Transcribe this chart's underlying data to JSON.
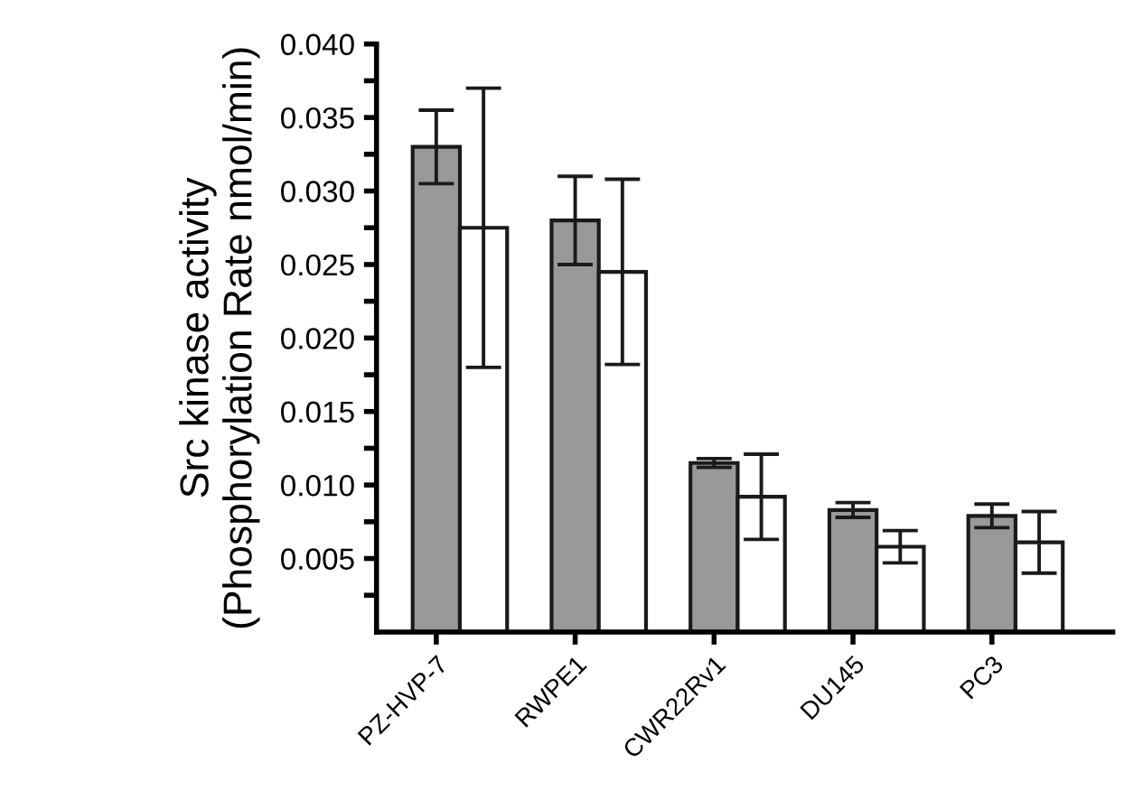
{
  "chart_data": {
    "type": "bar",
    "ylabel": "Src kinase activity\n(Phosphorylation Rate nmol/min)",
    "categories": [
      "PZ-HVP-7",
      "RWPE1",
      "CWR22Rv1",
      "DU145",
      "PC3"
    ],
    "series": [
      {
        "color": "#999999",
        "values": [
          0.033,
          0.028,
          0.0115,
          0.0083,
          0.0079
        ],
        "errors": [
          0.0025,
          0.003,
          0.0003,
          0.0005,
          0.0008
        ]
      },
      {
        "color": "#ffffff",
        "values": [
          0.0275,
          0.0245,
          0.0092,
          0.0058,
          0.0061
        ],
        "errors": [
          0.0095,
          0.0063,
          0.0029,
          0.0011,
          0.0021
        ]
      }
    ],
    "ylim": [
      0,
      0.04
    ],
    "yticks": [
      {
        "value": 0.0025,
        "label": null
      },
      {
        "value": 0.005,
        "label": "0.005"
      },
      {
        "value": 0.0075,
        "label": null
      },
      {
        "value": 0.01,
        "label": "0.010"
      },
      {
        "value": 0.0125,
        "label": null
      },
      {
        "value": 0.015,
        "label": "0.015"
      },
      {
        "value": 0.0175,
        "label": null
      },
      {
        "value": 0.02,
        "label": "0.020"
      },
      {
        "value": 0.0225,
        "label": null
      },
      {
        "value": 0.025,
        "label": "0.025"
      },
      {
        "value": 0.0275,
        "label": null
      },
      {
        "value": 0.03,
        "label": "0.030"
      },
      {
        "value": 0.0325,
        "label": null
      },
      {
        "value": 0.035,
        "label": "0.035"
      },
      {
        "value": 0.0375,
        "label": null
      },
      {
        "value": 0.04,
        "label": "0.040"
      }
    ],
    "grid": false,
    "legend": false
  }
}
